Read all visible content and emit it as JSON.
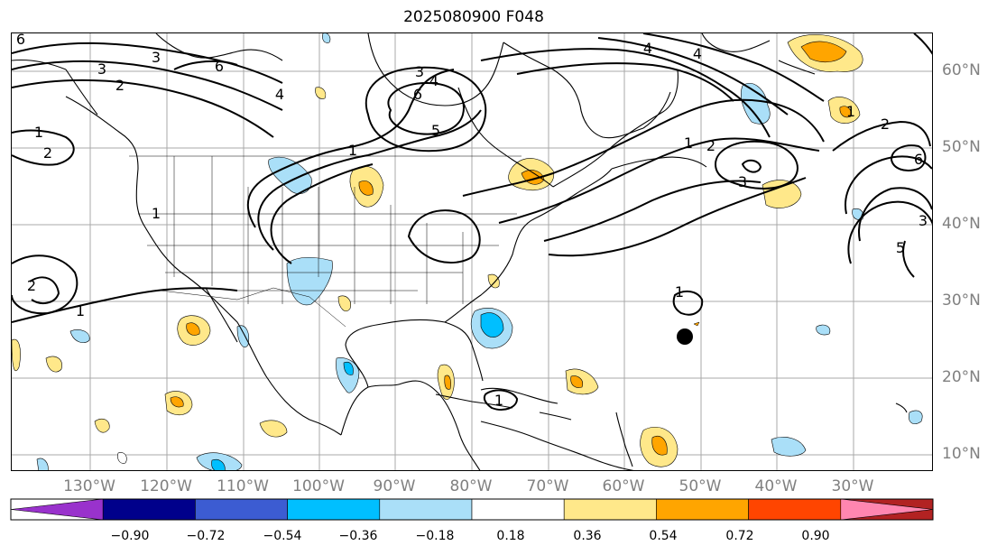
{
  "title": "2025080900 F048",
  "lon_labels": [
    "130°W",
    "120°W",
    "110°W",
    "100°W",
    "90°W",
    "80°W",
    "70°W",
    "60°W",
    "50°W",
    "40°W",
    "30°W"
  ],
  "lat_labels": [
    "60°N",
    "50°N",
    "40°N",
    "30°N",
    "20°N",
    "10°N"
  ],
  "colorbar": {
    "ticks": [
      "−0.90",
      "−0.72",
      "−0.54",
      "−0.36",
      "−0.18",
      "0.18",
      "0.36",
      "0.54",
      "0.72",
      "0.90"
    ],
    "colors": [
      "#9932cc",
      "#00008b",
      "#3c5cd2",
      "#00bfff",
      "#aadff8",
      "#ffffff",
      "#ffe88a",
      "#ffa500",
      "#ff4500",
      "#b22222",
      "#ff86b0"
    ]
  },
  "contour_labels": [
    "6",
    "6",
    "1",
    "1",
    "4",
    "6",
    "4",
    "3",
    "5",
    "4",
    "1",
    "2",
    "3",
    "4",
    "2",
    "3",
    "1",
    "1",
    "2",
    "6",
    "3",
    "2",
    "3",
    "1",
    "5",
    "1",
    "1",
    "2"
  ],
  "colors": {
    "frame": "#000000",
    "grid": "#a9a9a9",
    "axis_label": "#808080",
    "contour": "#000000"
  },
  "marker": {
    "type": "storm-center-dot",
    "color": "#000000"
  }
}
